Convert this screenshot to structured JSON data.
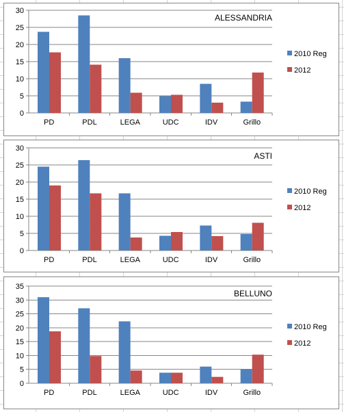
{
  "colors": {
    "series_2010": "#4f81bd",
    "series_2012": "#c0504d",
    "gridline": "#868686"
  },
  "chart_data": [
    {
      "type": "bar",
      "title": "ALESSANDRIA",
      "categories": [
        "PD",
        "PDL",
        "LEGA",
        "UDC",
        "IDV",
        "Grillo"
      ],
      "ylim": [
        0,
        30
      ],
      "yticks": [
        "0",
        "5",
        "10",
        "15",
        "20",
        "25",
        "30"
      ],
      "grid": true,
      "legend": "right",
      "series": [
        {
          "name": "2010 Reg",
          "color": "#4f81bd",
          "values": [
            23.7,
            28.5,
            16.0,
            4.9,
            8.5,
            3.3
          ]
        },
        {
          "name": "2012",
          "color": "#c0504d",
          "values": [
            17.7,
            14.1,
            5.9,
            5.3,
            3.0,
            11.8
          ]
        }
      ]
    },
    {
      "type": "bar",
      "title": "ASTI",
      "categories": [
        "PD",
        "PDL",
        "LEGA",
        "UDC",
        "IDV",
        "Grillo"
      ],
      "ylim": [
        0,
        30
      ],
      "yticks": [
        "0",
        "5",
        "10",
        "15",
        "20",
        "25",
        "30"
      ],
      "grid": true,
      "legend": "right",
      "series": [
        {
          "name": "2010 Reg",
          "color": "#4f81bd",
          "values": [
            24.5,
            26.4,
            16.7,
            4.3,
            7.3,
            4.8
          ]
        },
        {
          "name": "2012",
          "color": "#c0504d",
          "values": [
            19.0,
            16.7,
            3.8,
            5.4,
            4.2,
            8.1
          ]
        }
      ]
    },
    {
      "type": "bar",
      "title": "BELLUNO",
      "categories": [
        "PD",
        "PDL",
        "LEGA",
        "UDC",
        "IDV",
        "Grillo"
      ],
      "ylim": [
        0,
        35
      ],
      "yticks": [
        "0",
        "5",
        "10",
        "15",
        "20",
        "25",
        "30",
        "35"
      ],
      "grid": true,
      "legend": "right",
      "series": [
        {
          "name": "2010 Reg",
          "color": "#4f81bd",
          "values": [
            31.0,
            27.0,
            22.3,
            3.8,
            6.0,
            5.0
          ]
        },
        {
          "name": "2012",
          "color": "#c0504d",
          "values": [
            18.7,
            9.8,
            4.6,
            3.8,
            2.3,
            10.3
          ]
        }
      ]
    }
  ]
}
